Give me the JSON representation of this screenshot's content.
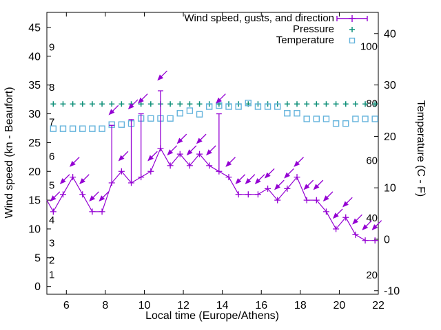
{
  "chart_data": {
    "type": "line",
    "title": "",
    "xlabel": "Local time (Europe/Athens)",
    "ylabel_left": "Wind speed (kn - Beaufort)",
    "ylabel_right": "Temperature (C - F)",
    "x_ticks": [
      6,
      8,
      10,
      12,
      14,
      16,
      18,
      20,
      22
    ],
    "x_range_hours": [
      5,
      22
    ],
    "left_axis_ticks_kn": [
      0,
      5,
      10,
      15,
      20,
      25,
      30,
      35,
      40,
      45
    ],
    "right_axis_ticks_c": [
      -10,
      0,
      10,
      20,
      30,
      40
    ],
    "beaufort_inner_labels": [
      {
        "label": "1",
        "kn": 1
      },
      {
        "label": "2",
        "kn": 3.5
      },
      {
        "label": "3",
        "kn": 6.5
      },
      {
        "label": "4",
        "kn": 10.5
      },
      {
        "label": "5",
        "kn": 16.5
      },
      {
        "label": "6",
        "kn": 21.5
      },
      {
        "label": "7",
        "kn": 27.5
      },
      {
        "label": "8",
        "kn": 33.5
      },
      {
        "label": "9",
        "kn": 40.5
      }
    ],
    "fahrenheit_inner_labels": [
      20,
      40,
      60,
      80,
      100
    ],
    "x_hours": [
      5.33,
      5.83,
      6.33,
      6.83,
      7.33,
      7.83,
      8.33,
      8.83,
      9.33,
      9.83,
      10.33,
      10.83,
      11.33,
      11.83,
      12.33,
      12.83,
      13.33,
      13.83,
      14.33,
      14.83,
      15.33,
      15.83,
      16.33,
      16.83,
      17.33,
      17.83,
      18.33,
      18.83,
      19.33,
      19.83,
      20.33,
      20.83,
      21.33,
      21.83
    ],
    "series": [
      {
        "name": "Wind speed, gusts, and direction",
        "type": "line-with-errorbars-and-direction-arrows",
        "color": "#9400d3",
        "values_kn": [
          13,
          16,
          19,
          16,
          13,
          13,
          18,
          20,
          18,
          19,
          20,
          24,
          21,
          23,
          21,
          23,
          21,
          20,
          19,
          16,
          16,
          16,
          17,
          15,
          17,
          19,
          15,
          15,
          13,
          10,
          12,
          9,
          8,
          8
        ],
        "gust_kn": [
          null,
          null,
          null,
          null,
          null,
          null,
          28,
          null,
          29,
          30,
          null,
          34,
          null,
          null,
          null,
          null,
          null,
          30,
          null,
          null,
          null,
          null,
          null,
          null,
          null,
          null,
          null,
          null,
          null,
          null,
          null,
          null,
          null,
          null
        ],
        "enters_left_edge_at_kn": 15,
        "extends_to_right_edge_at_kn": 8,
        "direction_note": "arrows above each point pointing down-left (wind from NE)"
      },
      {
        "name": "Pressure",
        "type": "points",
        "marker": "plus",
        "color": "#0d8f78",
        "plotted_level_on_left_axis": 31.7
      },
      {
        "name": "Temperature",
        "type": "points",
        "marker": "open-square",
        "color": "#64b3dc",
        "values_c": [
          21.5,
          21.5,
          21.5,
          21.5,
          21.5,
          21.5,
          22.3,
          22.3,
          22.5,
          23.5,
          23.5,
          23.5,
          23.5,
          24.5,
          25,
          24.3,
          25.8,
          26,
          25.8,
          25.8,
          26.5,
          25.8,
          25.8,
          25.8,
          24.5,
          24.5,
          23.4,
          23.4,
          23.4,
          22.5,
          22.5,
          23.4,
          23.4,
          23.4
        ]
      }
    ],
    "legend_position": "top-right-inside",
    "grid": false,
    "background": "#ffffff",
    "axis_color": "#000000"
  }
}
